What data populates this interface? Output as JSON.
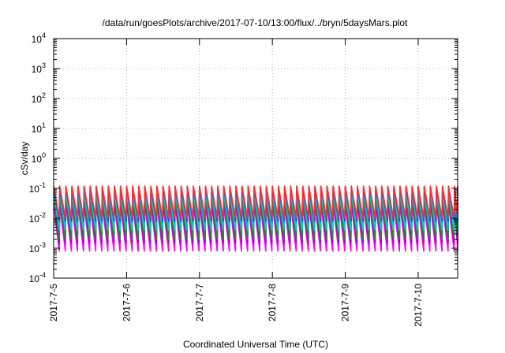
{
  "chart_data": {
    "type": "line",
    "title": "/data/run/goesPlots/archive/2017-07-10/13:00/flux/../bryn/5daysMars.plot",
    "xlabel": "Coordinated Universal Time (UTC)",
    "ylabel": "cSv/day",
    "y_scale": "log",
    "ylim": [
      0.0001,
      10000
    ],
    "y_ticks": [
      {
        "base": "10",
        "exp": "-4"
      },
      {
        "base": "10",
        "exp": "-3"
      },
      {
        "base": "10",
        "exp": "-2"
      },
      {
        "base": "10",
        "exp": "-1"
      },
      {
        "base": "10",
        "exp": "0"
      },
      {
        "base": "10",
        "exp": "1"
      },
      {
        "base": "10",
        "exp": "2"
      },
      {
        "base": "10",
        "exp": "3"
      },
      {
        "base": "10",
        "exp": "4"
      }
    ],
    "xlim": [
      "2017-07-05T00:00",
      "2017-07-10T13:00"
    ],
    "x_ticks": [
      "2017-7-5",
      "2017-7-6",
      "2017-7-7",
      "2017-7-8",
      "2017-7-9",
      "2017-7-10"
    ],
    "grid": true,
    "sawtooth_period_hours": 2,
    "series": [
      {
        "color": "#ff00ff",
        "peak": 0.03,
        "trough": 0.0008
      },
      {
        "color": "#9400d3",
        "peak": 0.04,
        "trough": 0.0015
      },
      {
        "color": "#228b22",
        "peak": 0.05,
        "trough": 0.002
      },
      {
        "color": "#00cccc",
        "peak": 0.07,
        "trough": 0.004
      },
      {
        "color": "#0044ff",
        "peak": 0.11,
        "trough": 0.008
      },
      {
        "color": "#ff3030",
        "peak": 0.12,
        "trough": 0.01
      }
    ]
  }
}
